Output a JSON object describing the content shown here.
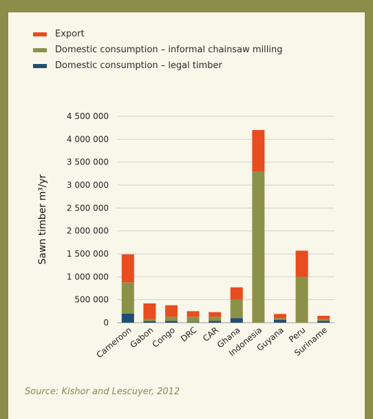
{
  "colors": {
    "export": "#e84c1f",
    "informal": "#8c9148",
    "legal": "#1e4f72",
    "grid": "#cfcfcf",
    "axis": "#9a9a9a"
  },
  "source": "Source: Kishor and Lescuyer, 2012",
  "chart_data": {
    "type": "bar",
    "stacked": true,
    "ylabel": "Sawn timber m³/yr",
    "ylim": [
      0,
      4500000
    ],
    "yticks": [
      0,
      500000,
      1000000,
      1500000,
      2000000,
      2500000,
      3000000,
      3500000,
      4000000,
      4500000
    ],
    "ytick_labels": [
      "0",
      "500 000",
      "1 000 000",
      "1 500 000",
      "2 000 000",
      "2 500 000",
      "3 000 000",
      "3 500 000",
      "4 000 000",
      "4 500 000"
    ],
    "categories": [
      "Cameroon",
      "Gabon",
      "Congo",
      "DRC",
      "CAR",
      "Ghana",
      "Indonesia",
      "Guyana",
      "Peru",
      "Suriname"
    ],
    "grid": true,
    "legend_position": "top-left",
    "series": [
      {
        "name": "Domestic consumption – legal timber",
        "color_key": "legal",
        "values": [
          200000,
          30000,
          40000,
          10000,
          40000,
          100000,
          0,
          60000,
          0,
          40000
        ]
      },
      {
        "name": "Domestic consumption – informal chainsaw milling",
        "color_key": "informal",
        "values": [
          680000,
          50000,
          90000,
          120000,
          90000,
          410000,
          3300000,
          40000,
          1000000,
          40000
        ]
      },
      {
        "name": "Export",
        "color_key": "export",
        "values": [
          610000,
          340000,
          250000,
          120000,
          100000,
          260000,
          900000,
          90000,
          570000,
          70000
        ]
      }
    ],
    "legend_order": [
      "Export",
      "Domestic consumption – informal chainsaw milling",
      "Domestic consumption – legal timber"
    ]
  }
}
